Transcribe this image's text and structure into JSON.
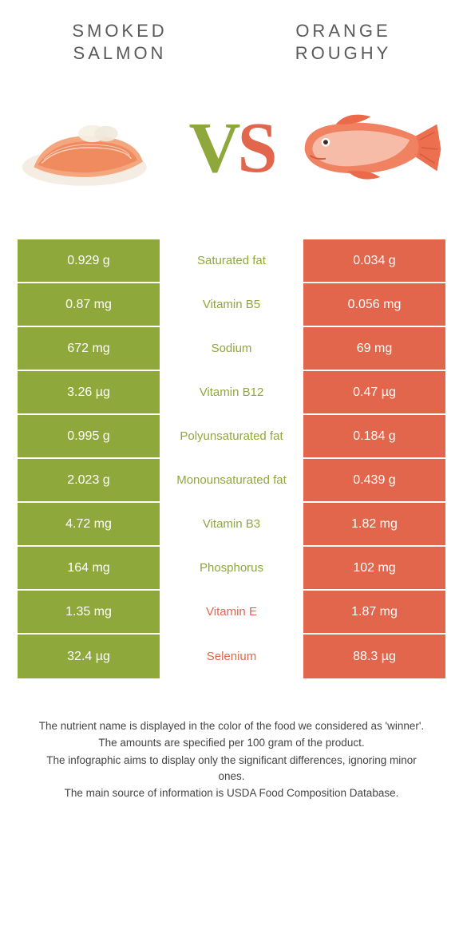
{
  "header": {
    "left_title": "SMOKED\nSALMON",
    "right_title": "ORANGE\nROUGHY",
    "vs_v": "V",
    "vs_s": "S"
  },
  "colors": {
    "left_bg": "#8fa83b",
    "right_bg": "#e1664c",
    "left_text": "#8fa83b",
    "right_text": "#e1664c"
  },
  "rows": [
    {
      "left": "0.929 g",
      "label": "Saturated fat",
      "right": "0.034 g",
      "winner": "left"
    },
    {
      "left": "0.87 mg",
      "label": "Vitamin B5",
      "right": "0.056 mg",
      "winner": "left"
    },
    {
      "left": "672 mg",
      "label": "Sodium",
      "right": "69 mg",
      "winner": "left"
    },
    {
      "left": "3.26 µg",
      "label": "Vitamin B12",
      "right": "0.47 µg",
      "winner": "left"
    },
    {
      "left": "0.995 g",
      "label": "Polyunsaturated fat",
      "right": "0.184 g",
      "winner": "left"
    },
    {
      "left": "2.023 g",
      "label": "Monounsaturated fat",
      "right": "0.439 g",
      "winner": "left"
    },
    {
      "left": "4.72 mg",
      "label": "Vitamin B3",
      "right": "1.82 mg",
      "winner": "left"
    },
    {
      "left": "164 mg",
      "label": "Phosphorus",
      "right": "102 mg",
      "winner": "left"
    },
    {
      "left": "1.35 mg",
      "label": "Vitamin E",
      "right": "1.87 mg",
      "winner": "right"
    },
    {
      "left": "32.4 µg",
      "label": "Selenium",
      "right": "88.3 µg",
      "winner": "right"
    }
  ],
  "footnote": {
    "l1": "The nutrient name is displayed in the color of the food we considered as 'winner'.",
    "l2": "The amounts are specified per 100 gram of the product.",
    "l3": "The infographic aims to display only the significant differences, ignoring minor ones.",
    "l4": "The main source of information is USDA Food Composition Database."
  }
}
